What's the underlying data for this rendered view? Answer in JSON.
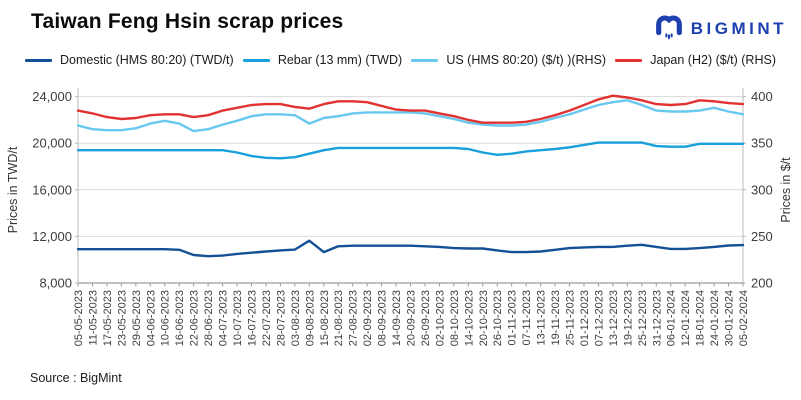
{
  "header": {
    "title": "Taiwan Feng Hsin scrap prices"
  },
  "logo": {
    "text": "BIGMINT",
    "icon": "bigmint-mark-icon",
    "color": "#1e3fae"
  },
  "source": {
    "label": "Source : BigMint"
  },
  "chart_data": {
    "type": "line",
    "title": "Taiwan Feng Hsin scrap prices",
    "grid": true,
    "legend_position": "top",
    "x_labels": [
      "05-05-2023",
      "11-05-2023",
      "17-05-2023",
      "23-05-2023",
      "29-05-2023",
      "04-06-2023",
      "10-06-2023",
      "16-06-2023",
      "22-06-2023",
      "28-06-2023",
      "04-07-2023",
      "10-07-2023",
      "16-07-2023",
      "22-07-2023",
      "28-07-2023",
      "03-08-2023",
      "09-08-2023",
      "15-08-2023",
      "21-08-2023",
      "27-08-2023",
      "02-09-2023",
      "08-09-2023",
      "14-09-2023",
      "20-09-2023",
      "26-09-2023",
      "02-10-2023",
      "08-10-2023",
      "14-10-2023",
      "20-10-2023",
      "26-10-2023",
      "01-11-2023",
      "07-11-2023",
      "13-11-2023",
      "19-11-2023",
      "25-11-2023",
      "01-12-2023",
      "07-12-2023",
      "13-12-2023",
      "19-12-2023",
      "25-12-2023",
      "31-12-2023",
      "06-01-2024",
      "12-01-2024",
      "18-01-2024",
      "24-01-2024",
      "30-01-2024",
      "05-02-2024"
    ],
    "left_axis": {
      "label": "Prices in TWD/t",
      "min": 8000,
      "max": 24000,
      "tick_values": [
        24000,
        20000,
        16000,
        12000,
        8000
      ],
      "tick_labels": [
        "24,000",
        "20,000",
        "16,000",
        "12,000",
        "8,000"
      ]
    },
    "right_axis": {
      "label": "Prices in $/t",
      "min": 200,
      "max": 400,
      "tick_values": [
        400,
        350,
        300,
        250,
        200
      ],
      "tick_labels": [
        "400",
        "350",
        "300",
        "250",
        "200"
      ]
    },
    "series": [
      {
        "name": "Domestic (HMS 80:20) (TWD/t)",
        "axis": "left",
        "color": "#145096",
        "values": [
          10900,
          10900,
          10900,
          10900,
          10900,
          10900,
          10900,
          10850,
          10400,
          10300,
          10350,
          10500,
          10600,
          10700,
          10800,
          10870,
          11630,
          10650,
          11150,
          11200,
          11200,
          11200,
          11200,
          11200,
          11150,
          11100,
          11000,
          10960,
          10960,
          10800,
          10650,
          10650,
          10700,
          10850,
          11000,
          11060,
          11100,
          11100,
          11200,
          11280,
          11100,
          10930,
          10930,
          11000,
          11100,
          11220,
          11250
        ]
      },
      {
        "name": "Rebar (13 mm) (TWD)",
        "axis": "left",
        "color": "#19a0dc",
        "values": [
          19400,
          19400,
          19400,
          19400,
          19400,
          19400,
          19400,
          19400,
          19400,
          19400,
          19400,
          19200,
          18900,
          18750,
          18700,
          18800,
          19100,
          19400,
          19600,
          19600,
          19600,
          19600,
          19600,
          19600,
          19600,
          19600,
          19600,
          19500,
          19200,
          19000,
          19100,
          19300,
          19400,
          19500,
          19650,
          19850,
          20050,
          20050,
          20050,
          20050,
          19750,
          19700,
          19700,
          19950,
          19950,
          19950,
          19950
        ]
      },
      {
        "name": "US (HMS 80:20) ($/t) )(RHS)",
        "axis": "right",
        "color": "#69c8f0",
        "values": [
          369,
          365,
          364,
          364,
          366,
          371,
          374,
          371,
          363,
          365,
          370,
          374,
          379,
          381,
          381,
          380,
          371,
          377,
          379,
          382,
          383,
          383,
          383,
          383,
          382,
          379,
          376,
          372,
          370,
          369,
          369,
          370,
          373,
          377,
          381,
          386,
          391,
          394,
          396,
          391,
          385,
          384,
          384,
          385,
          388,
          384,
          381
        ]
      },
      {
        "name": "Japan (H2) ($/t) (RHS)",
        "axis": "right",
        "color": "#e13232",
        "values": [
          385,
          382,
          378,
          376,
          377,
          380,
          381,
          381,
          378,
          380,
          385,
          388,
          391,
          392,
          392,
          389,
          387,
          392,
          395,
          395,
          394,
          390,
          386,
          385,
          385,
          382,
          379,
          375,
          372,
          372,
          372,
          373,
          376,
          380,
          385,
          391,
          397,
          401,
          399,
          396,
          392,
          391,
          392,
          396,
          395,
          393,
          392
        ]
      }
    ]
  }
}
